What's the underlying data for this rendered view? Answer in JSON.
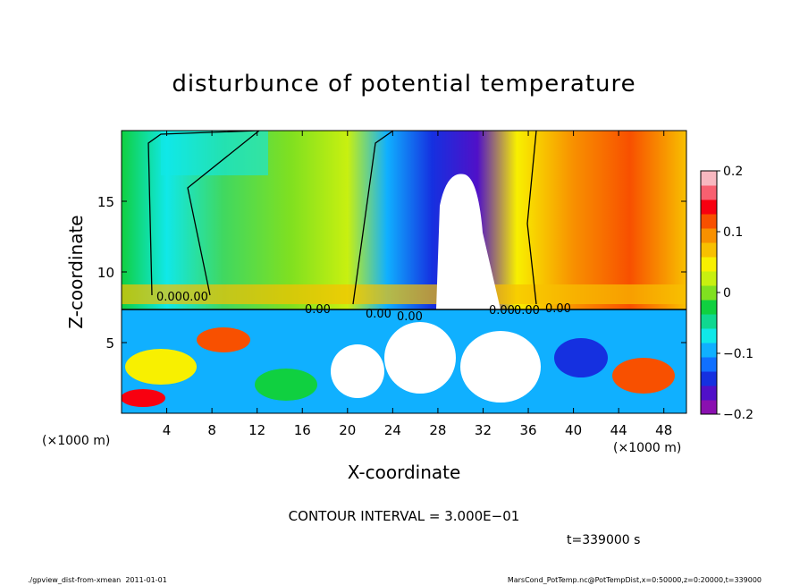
{
  "chart_data": {
    "type": "heatmap",
    "title": "disturbunce of potential temperature",
    "xlabel": "X-coordinate",
    "ylabel": "Z-coordinate",
    "x_unit": "(×1000 m)",
    "y_unit": "(×1000 m)",
    "xlim": [
      0,
      50
    ],
    "ylim": [
      0,
      20
    ],
    "x_ticks": [
      4,
      8,
      12,
      16,
      20,
      24,
      28,
      32,
      36,
      40,
      44,
      48
    ],
    "y_ticks": [
      5,
      10,
      15
    ],
    "colorbar": {
      "range": [
        -0.2,
        0.2
      ],
      "ticks": [
        "0.2",
        "0.1",
        "0",
        "−0.1",
        "−0.2"
      ],
      "tick_values": [
        0.2,
        0.1,
        0,
        -0.1,
        -0.2
      ],
      "colors": [
        "#8a10b0",
        "#5010c8",
        "#1530e0",
        "#1070ff",
        "#10b0ff",
        "#10e8e8",
        "#10d890",
        "#10d040",
        "#80e020",
        "#c8f010",
        "#f8f000",
        "#f8c000",
        "#f89000",
        "#f85000",
        "#f80010",
        "#f86070",
        "#f8b8c0"
      ]
    },
    "contour_labels": [
      "0.00",
      "0.00",
      "0.00",
      "0.00",
      "0.00",
      "0.00",
      "0.00",
      "0.00"
    ],
    "contour_interval": "CONTOUR INTERVAL = 3.000E−01",
    "time_label": "t=339000 s"
  },
  "footer": {
    "left": "./gpview_dist-from-xmean  2011-01-01",
    "right": "MarsCond_PotTemp.nc@PotTempDist,x=0:50000,z=0:20000,t=339000"
  }
}
